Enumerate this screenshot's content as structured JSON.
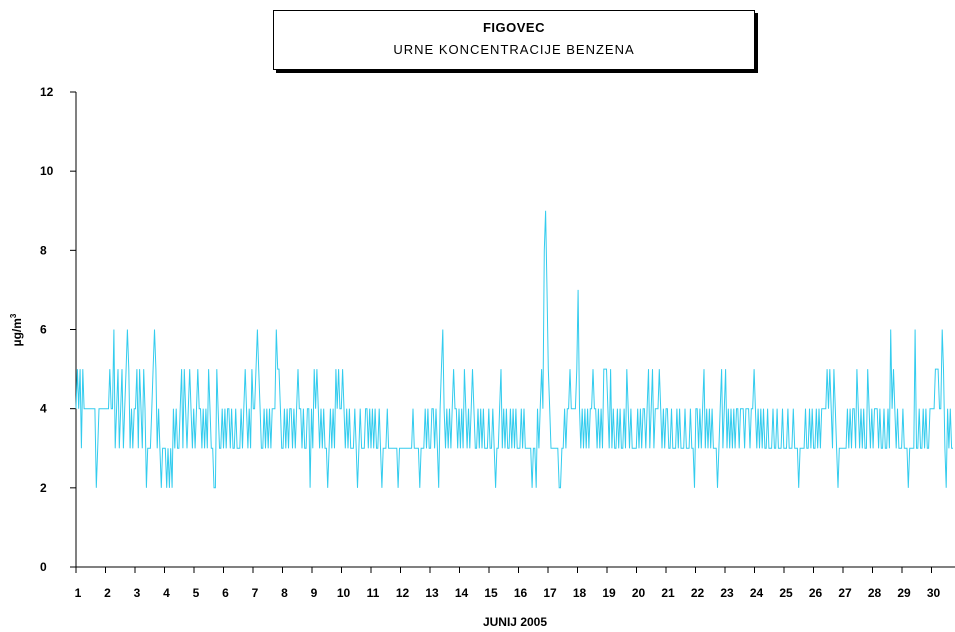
{
  "chart_data": {
    "type": "line",
    "title": "FIGOVEC",
    "subtitle": "URNE KONCENTRACIJE BENZENA",
    "xlabel": "JUNIJ 2005",
    "ylabel": "µg/m",
    "ylabel_sup": "3",
    "ylim": [
      0,
      12
    ],
    "yticks": [
      "0",
      "2",
      "4",
      "6",
      "8",
      "10",
      "12"
    ],
    "xticks": [
      "1",
      "2",
      "3",
      "4",
      "5",
      "6",
      "7",
      "8",
      "9",
      "10",
      "11",
      "12",
      "13",
      "14",
      "15",
      "16",
      "17",
      "18",
      "19",
      "20",
      "21",
      "22",
      "23",
      "24",
      "25",
      "26",
      "27",
      "28",
      "29",
      "30"
    ],
    "grid": false,
    "line_color": "#33ccee",
    "series": [
      {
        "values": [
          4,
          5,
          4,
          5,
          3,
          5,
          4,
          4,
          4,
          4,
          4,
          4,
          4,
          4,
          4,
          2,
          3,
          4,
          4,
          4,
          4,
          4,
          4,
          4,
          4,
          5,
          4,
          4,
          6,
          3,
          4,
          5,
          3,
          4,
          5,
          3,
          4,
          5,
          6,
          5,
          3,
          4,
          3,
          4,
          4,
          5,
          3,
          5,
          4,
          3,
          5,
          4,
          2,
          3,
          3,
          3,
          4,
          5,
          6,
          5,
          3,
          4,
          3,
          2,
          3,
          3,
          3,
          2,
          3,
          2,
          3,
          2,
          4,
          3,
          4,
          3,
          3,
          4,
          5,
          3,
          5,
          4,
          3,
          4,
          5,
          4,
          3,
          4,
          3,
          4,
          5,
          4,
          4,
          3,
          4,
          3,
          4,
          3,
          5,
          4,
          3,
          3,
          2,
          2,
          5,
          4,
          3,
          3,
          4,
          3,
          4,
          3,
          4,
          4,
          3,
          4,
          3,
          3,
          4,
          3,
          3,
          3,
          4,
          3,
          4,
          5,
          4,
          3,
          4,
          3,
          5,
          4,
          4,
          5,
          6,
          5,
          4,
          3,
          3,
          4,
          3,
          4,
          3,
          4,
          3,
          4,
          4,
          4,
          6,
          5,
          5,
          4,
          3,
          3,
          4,
          3,
          4,
          3,
          4,
          4,
          3,
          4,
          3,
          4,
          5,
          4,
          4,
          3,
          4,
          3,
          3,
          4,
          4,
          2,
          4,
          3,
          5,
          4,
          5,
          4,
          3,
          4,
          3,
          4,
          3,
          3,
          2,
          3,
          4,
          3,
          4,
          3,
          5,
          4,
          5,
          4,
          4,
          5,
          4,
          3,
          4,
          3,
          4,
          3,
          3,
          3,
          4,
          3,
          2,
          3,
          4,
          3,
          3,
          3,
          4,
          4,
          3,
          4,
          3,
          4,
          3,
          4,
          3,
          3,
          4,
          3,
          2,
          3,
          3,
          3,
          4,
          3,
          3,
          3,
          3,
          3,
          3,
          3,
          2,
          3,
          3,
          3,
          3,
          3,
          3,
          3,
          3,
          3,
          3,
          4,
          3,
          3,
          3,
          3,
          2,
          3,
          3,
          3,
          4,
          3,
          4,
          3,
          3,
          4,
          4,
          3,
          4,
          3,
          2,
          4,
          5,
          6,
          4,
          3,
          4,
          3,
          4,
          3,
          4,
          5,
          4,
          4,
          3,
          4,
          3,
          4,
          3,
          5,
          4,
          3,
          4,
          3,
          4,
          5,
          4,
          3,
          3,
          4,
          3,
          4,
          3,
          4,
          3,
          3,
          3,
          4,
          3,
          3,
          4,
          3,
          2,
          3,
          3,
          4,
          5,
          3,
          4,
          3,
          4,
          3,
          3,
          4,
          3,
          4,
          3,
          4,
          3,
          3,
          3,
          4,
          3,
          4,
          3,
          3,
          3,
          3,
          3,
          2,
          3,
          3,
          2,
          4,
          3,
          4,
          5,
          4,
          8,
          9,
          7,
          5,
          4,
          3,
          3,
          3,
          3,
          3,
          3,
          2,
          2,
          3,
          3,
          4,
          3,
          4,
          4,
          5,
          4,
          4,
          4,
          4,
          5,
          7,
          4,
          3,
          4,
          3,
          4,
          3,
          4,
          3,
          4,
          4,
          5,
          4,
          4,
          3,
          4,
          3,
          4,
          3,
          5,
          5,
          5,
          4,
          3,
          5,
          3,
          4,
          3,
          3,
          4,
          3,
          4,
          3,
          3,
          4,
          3,
          5,
          4,
          3,
          4,
          3,
          3,
          3,
          3,
          4,
          3,
          4,
          3,
          4,
          4,
          3,
          4,
          5,
          3,
          4,
          5,
          3,
          4,
          4,
          4,
          5,
          4,
          3,
          4,
          3,
          4,
          4,
          3,
          3,
          4,
          3,
          3,
          3,
          4,
          3,
          4,
          3,
          3,
          3,
          4,
          3,
          3,
          3,
          4,
          3,
          3,
          2,
          4,
          4,
          3,
          4,
          3,
          4,
          5,
          3,
          4,
          3,
          4,
          3,
          4,
          3,
          3,
          3,
          2,
          3,
          4,
          5,
          3,
          4,
          5,
          3,
          4,
          3,
          4,
          3,
          4,
          3,
          4,
          4,
          3,
          4,
          4,
          4,
          3,
          4,
          4,
          4,
          3,
          4,
          4,
          5,
          4,
          3,
          4,
          3,
          4,
          3,
          4,
          3,
          3,
          4,
          3,
          3,
          3,
          4,
          3,
          3,
          4,
          3,
          3,
          3,
          4,
          3,
          3,
          3,
          4,
          3,
          3,
          3,
          4,
          3,
          3,
          3,
          2,
          3,
          3,
          3,
          3,
          4,
          3,
          3,
          4,
          3,
          4,
          3,
          3,
          4,
          3,
          4,
          3,
          4,
          4,
          4,
          4,
          5,
          4,
          5,
          4,
          3,
          5,
          4,
          3,
          2,
          3,
          3,
          3,
          3,
          3,
          3,
          4,
          3,
          4,
          3,
          4,
          4,
          3,
          5,
          4,
          3,
          4,
          3,
          4,
          3,
          3,
          5,
          4,
          3,
          4,
          3,
          4,
          4,
          4,
          3,
          4,
          3,
          3,
          4,
          3,
          3,
          4,
          3,
          6,
          4,
          5,
          4,
          3,
          4,
          3,
          3,
          3,
          4,
          3,
          3,
          3,
          2,
          3,
          3,
          3,
          3,
          6,
          3,
          3,
          4,
          3,
          3,
          4,
          3,
          4,
          3,
          3,
          4,
          4,
          4,
          4,
          5,
          5,
          5,
          4,
          4,
          6,
          5,
          3,
          2,
          4,
          3,
          4,
          3,
          3
        ]
      }
    ]
  }
}
